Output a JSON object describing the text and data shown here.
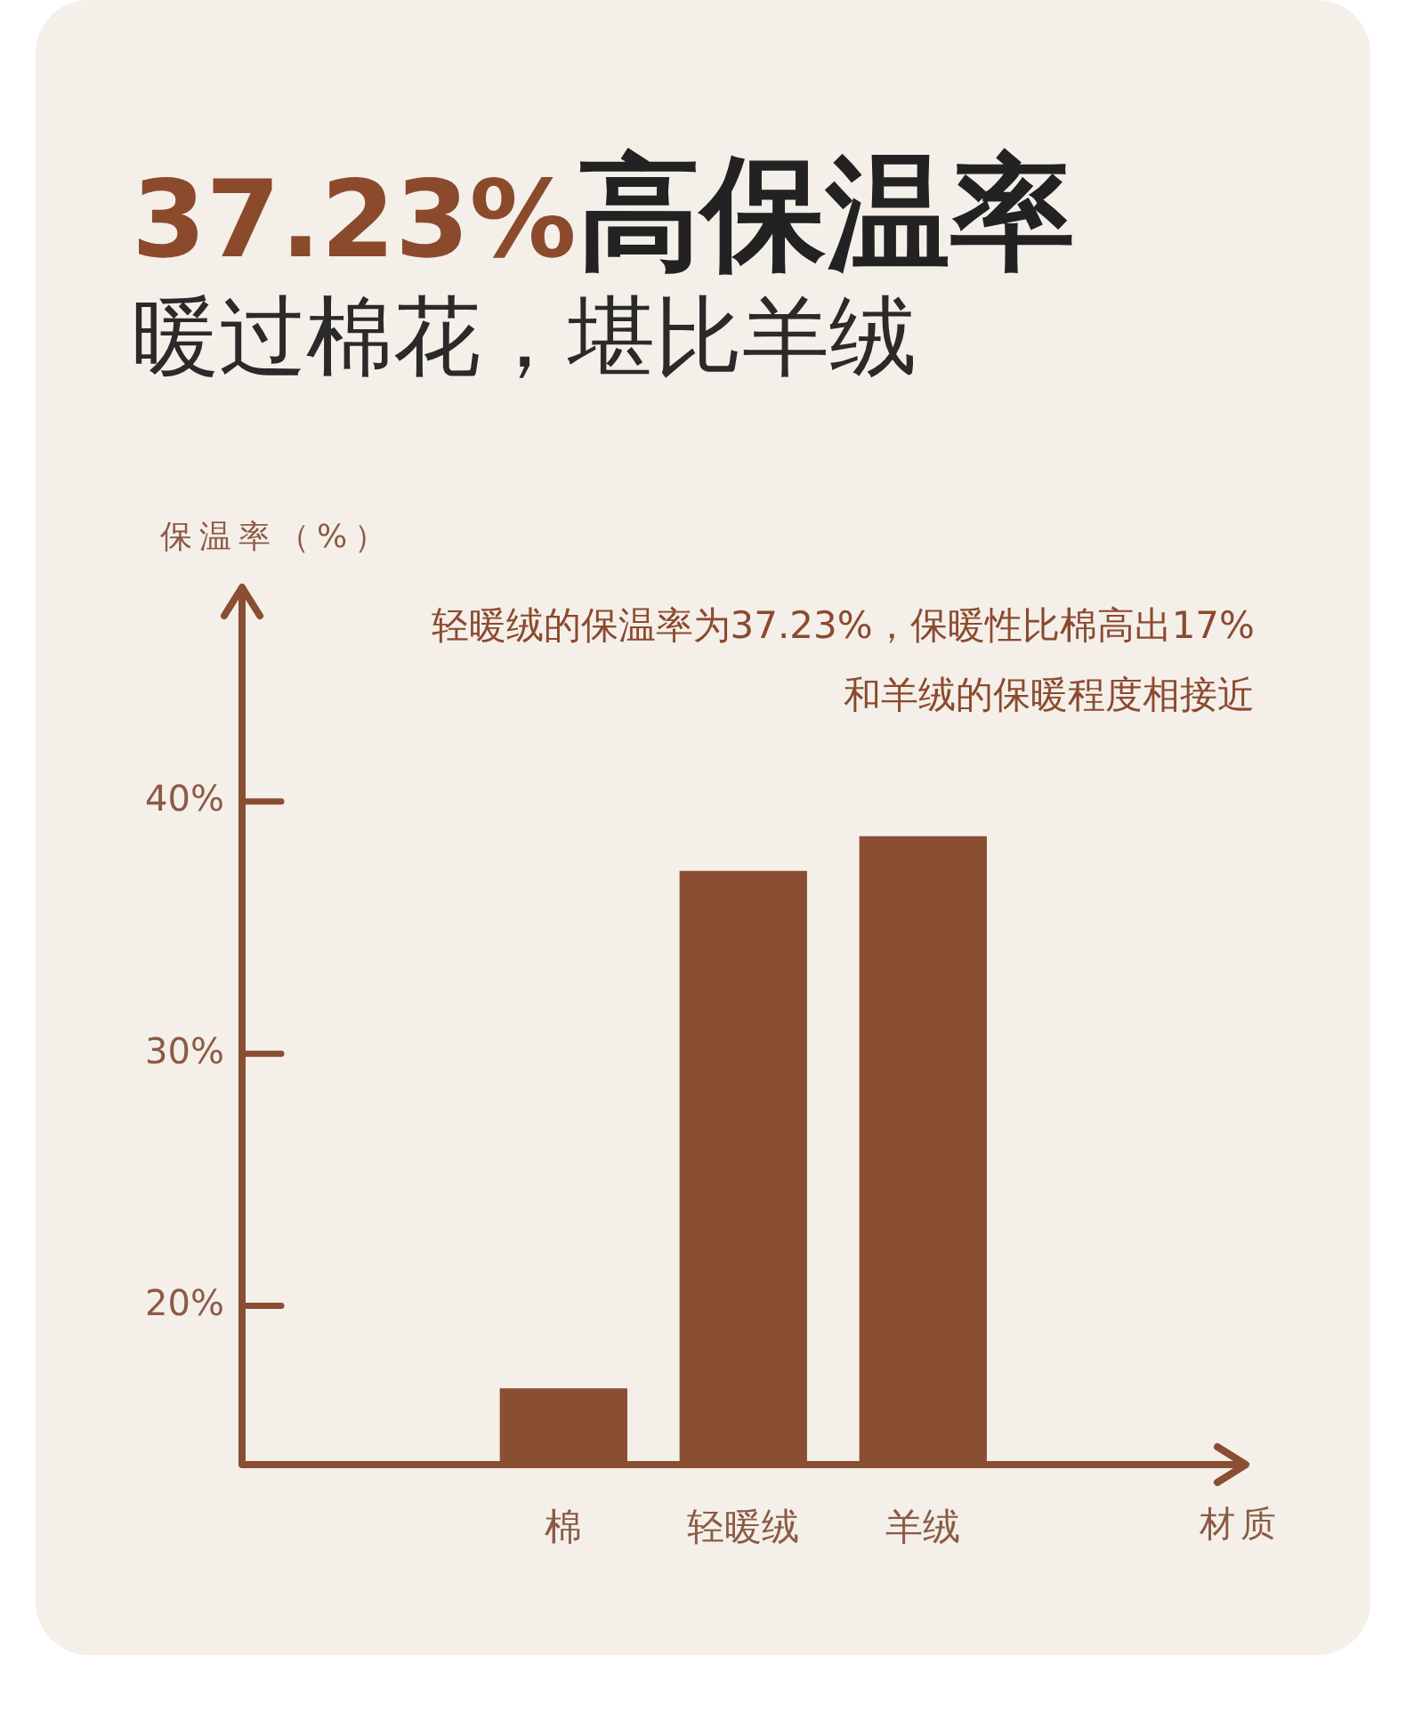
{
  "chart_data": {
    "type": "bar",
    "title": "37.23%高保温率",
    "subtitle": "暖过棉花，堪比羊绒",
    "ylabel": "保温率（%）",
    "annotations": [
      "轻暖绒的保温率为37.23%，保暖性比棉高出17%",
      "和羊绒的保暖程度相接近",
      "材质"
    ],
    "categories": [
      "棉",
      "轻暖绒",
      "羊绒"
    ],
    "values": [
      16.7,
      37.23,
      38.6
    ],
    "color": "#8a4e33",
    "ylim": [
      13.7,
      48.5
    ],
    "yticks": [
      {
        "value": 20,
        "label": "20%"
      },
      {
        "value": 30,
        "label": "30%"
      },
      {
        "value": 40,
        "label": "40%"
      }
    ],
    "legend": false
  }
}
